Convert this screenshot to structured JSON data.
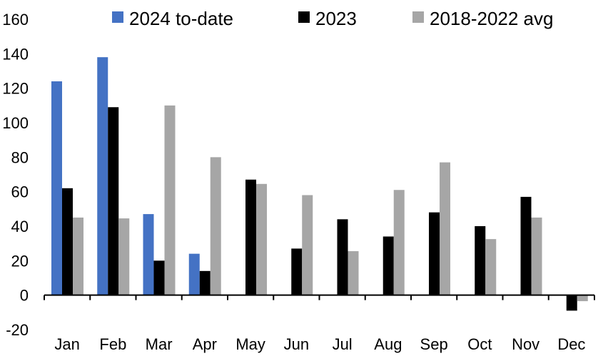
{
  "chart_data": {
    "type": "bar",
    "title": "",
    "xlabel": "",
    "ylabel": "",
    "ylim": [
      -20,
      160
    ],
    "yticks": [
      -20,
      0,
      20,
      40,
      60,
      80,
      100,
      120,
      140,
      160
    ],
    "grid": false,
    "legend_position": "top",
    "categories": [
      "Jan",
      "Feb",
      "Mar",
      "Apr",
      "May",
      "Jun",
      "Jul",
      "Aug",
      "Sep",
      "Oct",
      "Nov",
      "Dec"
    ],
    "series": [
      {
        "name": "2024 to-date",
        "color": "#4472C4",
        "values": [
          124,
          138,
          47,
          24,
          null,
          null,
          null,
          null,
          null,
          null,
          null,
          null
        ]
      },
      {
        "name": "2023",
        "color": "#000000",
        "values": [
          62,
          109,
          20,
          14,
          67,
          27,
          44,
          34,
          48,
          40,
          57,
          -9
        ]
      },
      {
        "name": "2018-2022 avg",
        "color": "#A6A6A6",
        "values": [
          45,
          44.5,
          110,
          80,
          64.5,
          58,
          25.5,
          61,
          77,
          32.5,
          45,
          -3.5
        ]
      }
    ]
  }
}
